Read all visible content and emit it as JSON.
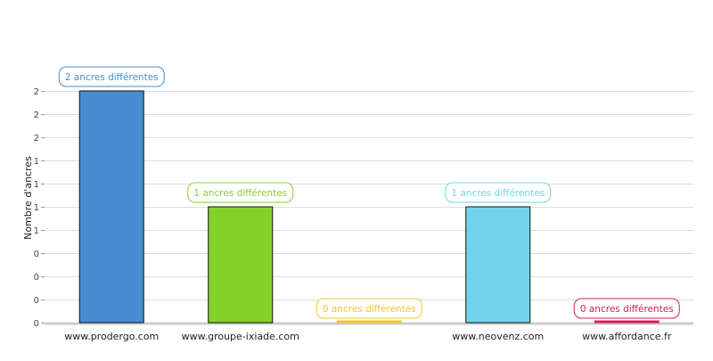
{
  "chart_data": {
    "type": "bar",
    "title": "",
    "xlabel": "",
    "ylabel": "Nombre d'ancres",
    "categories": [
      "www.prodergo.com",
      "www.groupe-ixiade.com",
      "",
      "www.neovenz.com",
      "www.affordance.fr"
    ],
    "values": [
      2,
      1,
      0,
      1,
      0
    ],
    "data_labels": [
      "2 ancres différentes",
      "1 ancres différentes",
      "0 ancres différentes",
      "1 ancres différentes",
      "0 ancres différentes"
    ],
    "colors": [
      "#468ccf",
      "#85d12a",
      "#f2c633",
      "#71d4ec",
      "#d11e51"
    ],
    "ylim": [
      0,
      2
    ],
    "ytick_values": [
      0,
      0.2,
      0.4,
      0.6,
      0.8,
      1.0,
      1.2,
      1.4,
      1.6,
      1.8,
      2.0
    ],
    "ytick_labels": [
      "0",
      "0",
      "0",
      "0",
      "1",
      "1",
      "1",
      "1",
      "2",
      "2",
      "2"
    ],
    "grid": true,
    "legend": "none"
  }
}
